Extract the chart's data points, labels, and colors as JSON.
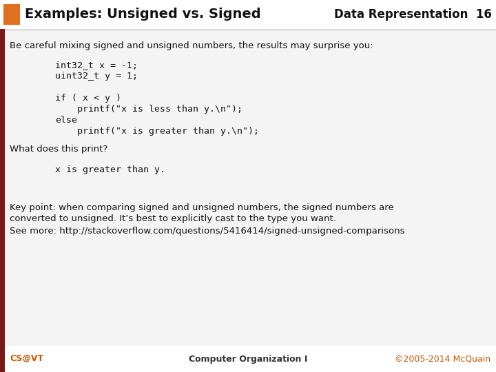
{
  "title_left": "Examples: Unsigned vs. Signed",
  "title_right": "Data Representation  16",
  "orange_color": "#E07020",
  "dark_red_color": "#7B1818",
  "header_bg": "#E0E0E0",
  "footer_bg": "#E0E0E0",
  "white_color": "#FFFFFF",
  "body_bg": "#F2F2F2",
  "footer_left": "CS@VT",
  "footer_center": "Computer Organization I",
  "footer_right": "©2005-2014 McQuain",
  "body_intro": "Be careful mixing signed and unsigned numbers, the results may surprise you:",
  "code_lines": [
    "int32_t x = -1;",
    "uint32_t y = 1;",
    "",
    "if ( x < y )",
    "    printf(\"x is less than y.\\n\");",
    "else",
    "    printf(\"x is greater than y.\\n\");"
  ],
  "what_print": "What does this print?",
  "answer_code": "x is greater than y.",
  "key_line1": "Key point: when comparing signed and unsigned numbers, the signed numbers are",
  "key_line2": "converted to unsigned. It’s best to explicitly cast to the type you want.",
  "see_more": "See more: http://stackoverflow.com/questions/5416414/signed-unsigned-comparisons"
}
